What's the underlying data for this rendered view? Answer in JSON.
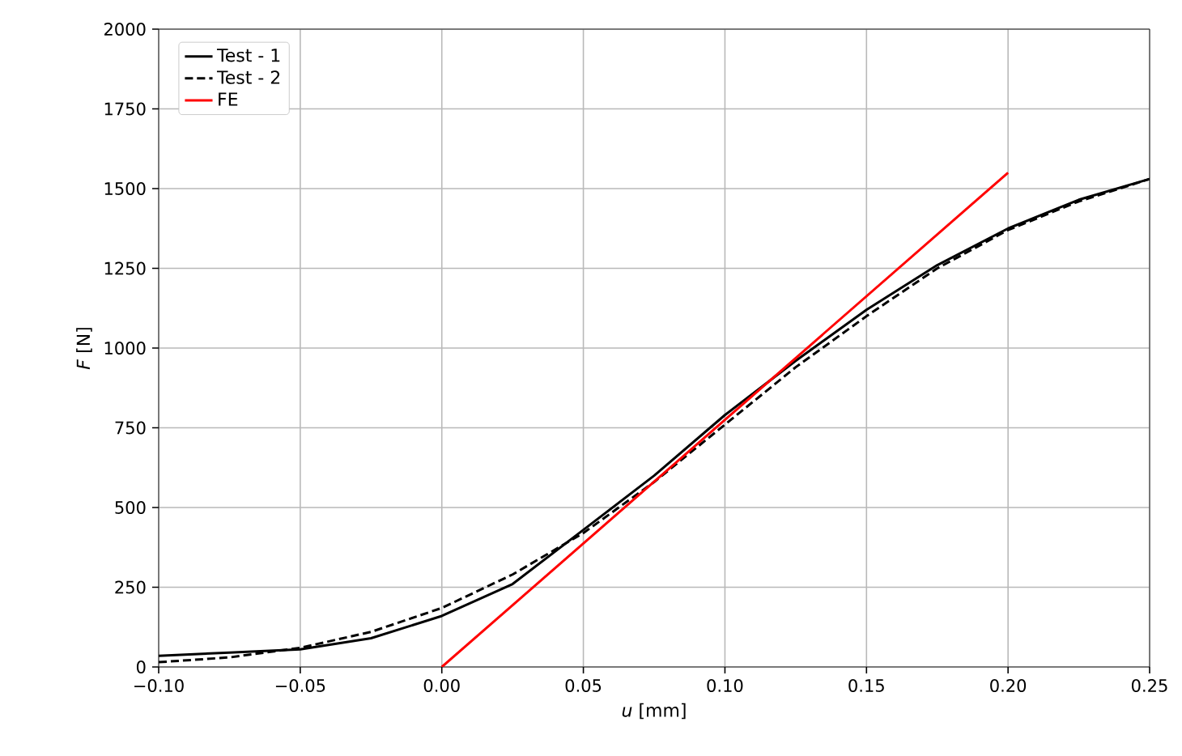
{
  "chart_data": {
    "type": "line",
    "xlabel": "*u* [mm]",
    "ylabel": "*F* [N]",
    "xlim": [
      -0.1,
      0.25
    ],
    "ylim": [
      0,
      2000
    ],
    "xticks": [
      {
        "value": -0.1,
        "label": "−0.10"
      },
      {
        "value": -0.05,
        "label": "−0.05"
      },
      {
        "value": 0,
        "label": "0.00"
      },
      {
        "value": 0.05,
        "label": "0.05"
      },
      {
        "value": 0.1,
        "label": "0.10"
      },
      {
        "value": 0.15,
        "label": "0.15"
      },
      {
        "value": 0.2,
        "label": "0.20"
      },
      {
        "value": 0.25,
        "label": "0.25"
      }
    ],
    "yticks": [
      0,
      250,
      500,
      750,
      1000,
      1250,
      1500,
      1750,
      2000
    ],
    "grid": true,
    "legend": "top left",
    "series": [
      {
        "name": "Test - 1",
        "color": "#000000",
        "line_style": "solid",
        "x": [
          -0.1,
          -0.075,
          -0.05,
          -0.025,
          0,
          0.025,
          0.05,
          0.075,
          0.1,
          0.125,
          0.15,
          0.175,
          0.2,
          0.225,
          0.25
        ],
        "values": [
          35,
          45,
          55,
          90,
          160,
          260,
          430,
          600,
          790,
          960,
          1120,
          1260,
          1375,
          1465,
          1530
        ]
      },
      {
        "name": "Test - 2",
        "color": "#000000",
        "line_style": "dashed",
        "x": [
          -0.1,
          -0.075,
          -0.05,
          -0.025,
          0,
          0.025,
          0.05,
          0.075,
          0.1,
          0.125,
          0.15,
          0.175,
          0.2,
          0.225,
          0.25
        ],
        "values": [
          15,
          30,
          60,
          110,
          185,
          290,
          420,
          580,
          760,
          940,
          1100,
          1250,
          1370,
          1460,
          1530
        ]
      },
      {
        "name": "FE",
        "color": "#ff0000",
        "line_style": "solid",
        "x": [
          0,
          0.2
        ],
        "values": [
          0,
          1550
        ]
      }
    ]
  }
}
